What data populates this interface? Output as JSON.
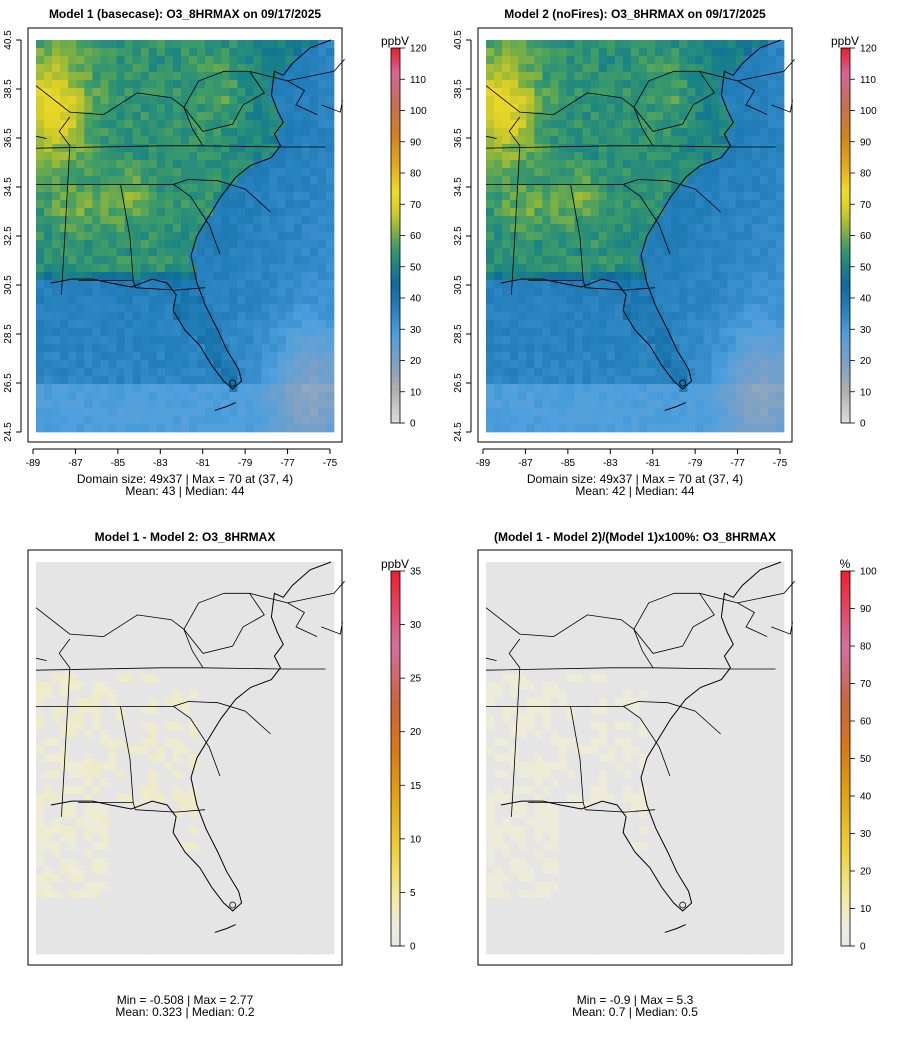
{
  "panels": [
    {
      "id": "model1",
      "title": "Model 1 (basecase): O3_8HRMAX on 09/17/2025",
      "kind": "o3",
      "show_axes": true,
      "colorbar": {
        "unit": "ppbV",
        "ticks": [
          "0",
          "10",
          "20",
          "30",
          "40",
          "50",
          "60",
          "70",
          "80",
          "90",
          "100",
          "110",
          "120"
        ],
        "max": 120
      },
      "stats": [
        "Domain size: 49x37 | Max = 70 at (37, 4)",
        "Mean: 43 |  Median: 44"
      ],
      "summary": {
        "domain_size": "49x37",
        "max": 70,
        "max_at": "(37, 4)",
        "mean": 43,
        "median": 44
      }
    },
    {
      "id": "model2",
      "title": "Model 2 (noFires): O3_8HRMAX on 09/17/2025",
      "kind": "o3",
      "show_axes": true,
      "colorbar": {
        "unit": "ppbV",
        "ticks": [
          "0",
          "10",
          "20",
          "30",
          "40",
          "50",
          "60",
          "70",
          "80",
          "90",
          "100",
          "110",
          "120"
        ],
        "max": 120
      },
      "stats": [
        "Domain size: 49x37 | Max = 70 at (37, 4)",
        "Mean: 42 |  Median: 44"
      ],
      "summary": {
        "domain_size": "49x37",
        "max": 70,
        "max_at": "(37, 4)",
        "mean": 42,
        "median": 44
      }
    },
    {
      "id": "diff",
      "title": "Model 1 - Model 2: O3_8HRMAX",
      "kind": "diff",
      "show_axes": false,
      "colorbar": {
        "unit": "ppbV",
        "ticks": [
          "0",
          "5",
          "10",
          "15",
          "20",
          "25",
          "30",
          "35"
        ],
        "max": 35
      },
      "stats": [
        "Min = -0.508 | Max = 2.77",
        "Mean: 0.323 |  Median: 0.2"
      ],
      "summary": {
        "min": -0.508,
        "max": 2.77,
        "mean": 0.323,
        "median": 0.2
      }
    },
    {
      "id": "pct",
      "title": "(Model 1 - Model 2)/(Model 1)x100%: O3_8HRMAX",
      "kind": "pct",
      "show_axes": false,
      "colorbar": {
        "unit": "%",
        "ticks": [
          "0",
          "10",
          "20",
          "30",
          "40",
          "50",
          "60",
          "70",
          "80",
          "90",
          "100"
        ],
        "max": 100
      },
      "stats": [
        "Min = -0.9 | Max = 5.3",
        "Mean: 0.7 |  Median: 0.5"
      ],
      "summary": {
        "min": -0.9,
        "max": 5.3,
        "mean": 0.7,
        "median": 0.5
      }
    }
  ],
  "chart_data": {
    "type": "heatmap",
    "x_ticks": [
      "-89",
      "-87",
      "-85",
      "-83",
      "-81",
      "-79",
      "-77",
      "-75"
    ],
    "y_ticks": [
      "24.5",
      "26.5",
      "28.5",
      "30.5",
      "32.5",
      "34.5",
      "36.5",
      "38.5",
      "40.5"
    ],
    "xlim": [
      -89,
      -75
    ],
    "ylim": [
      24.5,
      40.5
    ],
    "grid": "49x37",
    "colors": {
      "map_border": "#000000",
      "background": "#ffffff",
      "diff_background": "#e5e5e5"
    }
  }
}
